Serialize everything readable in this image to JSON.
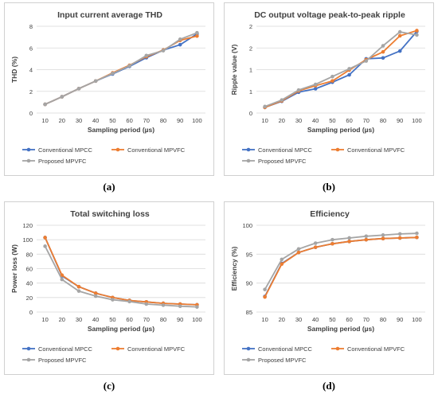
{
  "captions": [
    "(a)",
    "(b)",
    "(c)",
    "(d)"
  ],
  "colors": {
    "MPCC": "#4472C4",
    "MPVFC": "#ED7D31",
    "Proposed": "#A5A5A5"
  },
  "chart_data": [
    {
      "type": "line",
      "title": "Input current average THD",
      "xlabel": "Sampling period (µs)",
      "ylabel": "THD (%)",
      "ylim": [
        0,
        8
      ],
      "yticks": [
        "0",
        "2",
        "4",
        "6",
        "8"
      ],
      "ytick_values": [
        0,
        2,
        4,
        6,
        8
      ],
      "categories": [
        "10",
        "20",
        "30",
        "40",
        "50",
        "60",
        "70",
        "80",
        "90",
        "100"
      ],
      "series": [
        {
          "name": "Conventional MPCC",
          "key": "MPCC",
          "values": [
            0.8,
            1.5,
            2.25,
            2.95,
            3.6,
            4.3,
            5.1,
            5.8,
            6.3,
            7.3
          ]
        },
        {
          "name": "Conventional MPVFC",
          "key": "MPVFC",
          "values": [
            0.8,
            1.5,
            2.25,
            2.95,
            3.7,
            4.4,
            5.2,
            5.8,
            6.7,
            7.1
          ]
        },
        {
          "name": "Proposed MPVFC",
          "key": "Proposed",
          "values": [
            0.8,
            1.5,
            2.25,
            2.95,
            3.65,
            4.35,
            5.3,
            5.75,
            6.8,
            7.4
          ]
        }
      ],
      "legend": [
        "Conventional MPCC",
        "Conventional MPVFC",
        "Proposed MPVFC"
      ]
    },
    {
      "type": "line",
      "title": "DC output voltage peak-to-peak ripple",
      "xlabel": "Sampling period (µs)",
      "ylabel": "Ripple value (V)",
      "ylim": [
        0,
        2
      ],
      "yticks": [
        "0",
        "1",
        "1",
        "2",
        "2"
      ],
      "ytick_values": [
        0,
        0.5,
        1,
        1.5,
        2
      ],
      "categories": [
        "10",
        "20",
        "30",
        "40",
        "50",
        "60",
        "70",
        "80",
        "90",
        "100"
      ],
      "series": [
        {
          "name": "Conventional MPCC",
          "key": "MPCC",
          "values": [
            0.13,
            0.27,
            0.48,
            0.56,
            0.71,
            0.88,
            1.25,
            1.27,
            1.43,
            1.88
          ]
        },
        {
          "name": "Conventional MPVFC",
          "key": "MPVFC",
          "values": [
            0.13,
            0.28,
            0.51,
            0.63,
            0.74,
            0.99,
            1.23,
            1.41,
            1.78,
            1.9
          ]
        },
        {
          "name": "Proposed MPVFC",
          "key": "Proposed",
          "values": [
            0.15,
            0.3,
            0.53,
            0.66,
            0.84,
            1.02,
            1.2,
            1.55,
            1.87,
            1.8
          ]
        }
      ],
      "legend": [
        "Conventional MPCC",
        "Conventional MPVFC",
        "Proposed MPVFC"
      ]
    },
    {
      "type": "line",
      "title": "Total switching loss",
      "xlabel": "Sampling period (µs)",
      "ylabel": "Power loss (W)",
      "ylim": [
        0,
        120
      ],
      "yticks": [
        "0",
        "20",
        "40",
        "60",
        "80",
        "100",
        "120"
      ],
      "ytick_values": [
        0,
        20,
        40,
        60,
        80,
        100,
        120
      ],
      "categories": [
        "10",
        "20",
        "30",
        "40",
        "50",
        "60",
        "70",
        "80",
        "90",
        "100"
      ],
      "series": [
        {
          "name": "Conventional MPCC",
          "key": "MPCC",
          "values": [
            103,
            50,
            35,
            26,
            20,
            16,
            14,
            12,
            11,
            10
          ]
        },
        {
          "name": "Conventional MPVFC",
          "key": "MPVFC",
          "values": [
            103,
            51,
            35,
            26,
            20,
            16,
            14,
            12,
            11,
            10
          ]
        },
        {
          "name": "Proposed MPVFC",
          "key": "Proposed",
          "values": [
            91,
            45,
            29,
            22,
            17,
            14.5,
            11,
            9.5,
            8,
            7
          ]
        }
      ],
      "legend": [
        "Conventional MPCC",
        "Conventional MPVFC",
        "Proposed MPVFC"
      ]
    },
    {
      "type": "line",
      "title": "Efficiency",
      "xlabel": "Sampling period (µs)",
      "ylabel": "Efficiency (%)",
      "ylim": [
        85,
        100
      ],
      "yticks": [
        "85",
        "90",
        "95",
        "100"
      ],
      "ytick_values": [
        85,
        90,
        95,
        100
      ],
      "categories": [
        "10",
        "20",
        "30",
        "40",
        "50",
        "60",
        "70",
        "80",
        "90",
        "100"
      ],
      "series": [
        {
          "name": "Conventional MPCC",
          "key": "MPCC",
          "values": [
            87.7,
            93.4,
            95.3,
            96.2,
            96.8,
            97.2,
            97.5,
            97.7,
            97.8,
            97.9
          ]
        },
        {
          "name": "Conventional MPVFC",
          "key": "MPVFC",
          "values": [
            87.6,
            93.3,
            95.3,
            96.2,
            96.8,
            97.2,
            97.5,
            97.7,
            97.8,
            97.9
          ]
        },
        {
          "name": "Proposed MPVFC",
          "key": "Proposed",
          "values": [
            88.9,
            94.1,
            95.9,
            96.9,
            97.5,
            97.8,
            98.1,
            98.3,
            98.5,
            98.6
          ]
        }
      ],
      "legend": [
        "Conventional MPCC",
        "Conventional MPVFC",
        "Proposed MPVFC"
      ]
    }
  ]
}
